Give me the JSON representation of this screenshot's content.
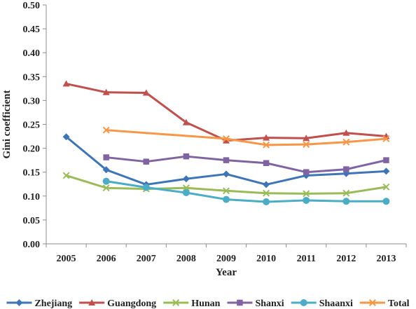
{
  "chart_data": {
    "type": "line",
    "title": "",
    "xlabel": "Year",
    "ylabel": "Gini coefficient",
    "x": [
      "2005",
      "2006",
      "2007",
      "2008",
      "2009",
      "2010",
      "2011",
      "2012",
      "2013"
    ],
    "ylim": [
      0,
      0.5
    ],
    "yticks": [
      "0.00",
      "0.05",
      "0.10",
      "0.15",
      "0.20",
      "0.25",
      "0.30",
      "0.35",
      "0.40",
      "0.45",
      "0.50"
    ],
    "grid": false,
    "legend_position": "bottom",
    "series": [
      {
        "name": "Zhejiang",
        "color": "#3e75b8",
        "marker": "diamond",
        "values": [
          0.224,
          0.155,
          0.124,
          0.136,
          0.146,
          0.124,
          0.143,
          0.147,
          0.152
        ]
      },
      {
        "name": "Guangdong",
        "color": "#c0504d",
        "marker": "triangle",
        "values": [
          0.335,
          0.317,
          0.316,
          0.254,
          0.216,
          0.222,
          0.221,
          0.232,
          0.225
        ]
      },
      {
        "name": "Hunan",
        "color": "#9bbb59",
        "marker": "x",
        "values": [
          0.143,
          0.117,
          0.115,
          0.117,
          0.111,
          0.106,
          0.105,
          0.106,
          0.119
        ]
      },
      {
        "name": "Shanxi",
        "color": "#8064a2",
        "marker": "square",
        "values": [
          null,
          0.181,
          0.172,
          0.183,
          0.175,
          0.169,
          0.15,
          0.156,
          0.175
        ]
      },
      {
        "name": "Shaanxi",
        "color": "#4bacc6",
        "marker": "circle",
        "values": [
          null,
          0.131,
          0.118,
          0.107,
          0.093,
          0.088,
          0.091,
          0.089,
          0.089
        ]
      },
      {
        "name": "Total",
        "color": "#f79646",
        "marker": "x",
        "values": [
          null,
          0.238,
          null,
          null,
          0.22,
          0.207,
          0.208,
          0.213,
          0.22
        ]
      }
    ]
  }
}
